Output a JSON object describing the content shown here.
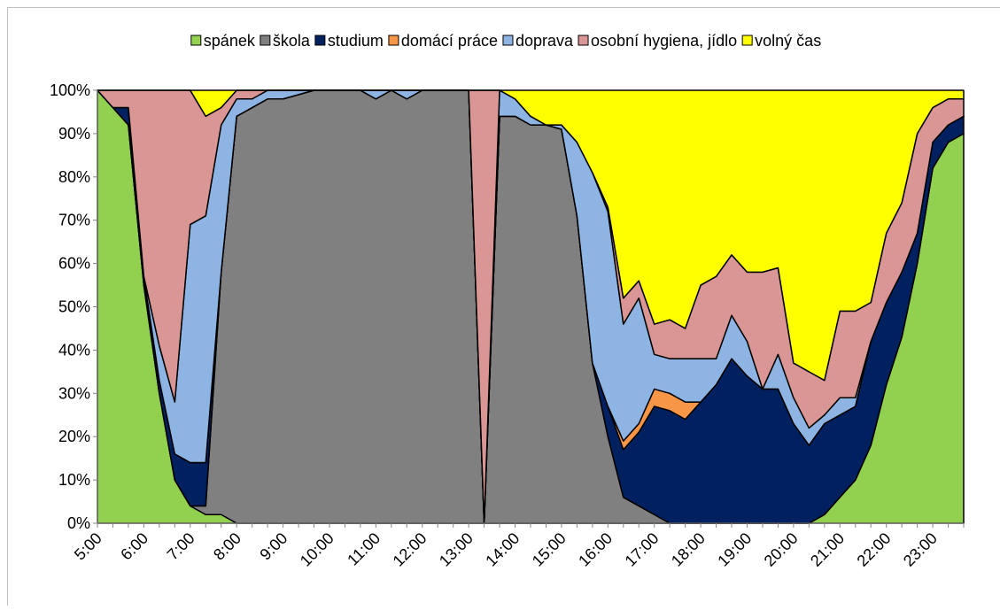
{
  "chart_data": {
    "type": "stacked_area_100",
    "categories": [
      "5:00",
      null,
      null,
      "6:00",
      null,
      null,
      "7:00",
      null,
      null,
      "8:00",
      null,
      null,
      "9:00",
      null,
      null,
      "10:00",
      null,
      null,
      "11:00",
      null,
      null,
      "12:00",
      null,
      null,
      "13:00",
      null,
      null,
      "14:00",
      null,
      null,
      "15:00",
      null,
      null,
      "16:00",
      null,
      null,
      "17:00",
      null,
      null,
      "18:00",
      null,
      null,
      "19:00",
      null,
      null,
      "20:00",
      null,
      null,
      "21:00",
      null,
      null,
      "22:00",
      null,
      null,
      "23:00",
      null,
      null
    ],
    "series": [
      {
        "name": "spánek",
        "color": "#92d050",
        "values": [
          100,
          96,
          92,
          55,
          30,
          10,
          4,
          2,
          2,
          0,
          0,
          0,
          0,
          0,
          0,
          0,
          0,
          0,
          0,
          0,
          0,
          0,
          0,
          0,
          0,
          0,
          0,
          0,
          0,
          0,
          0,
          0,
          0,
          0,
          0,
          0,
          0,
          0,
          0,
          0,
          0,
          0,
          0,
          0,
          0,
          0,
          0,
          2,
          6,
          10,
          18,
          32,
          43,
          60,
          82,
          88,
          90
        ]
      },
      {
        "name": "škola",
        "color": "#808080",
        "values": [
          0,
          0,
          0,
          0,
          0,
          0,
          0,
          2,
          56,
          94,
          96,
          98,
          98,
          99,
          100,
          100,
          100,
          100,
          98,
          100,
          98,
          100,
          100,
          100,
          100,
          0,
          94,
          94,
          92,
          92,
          91,
          71,
          37,
          20,
          6,
          4,
          2,
          0,
          0,
          0,
          0,
          0,
          0,
          0,
          0,
          0,
          0,
          0,
          0,
          0,
          0,
          0,
          0,
          0,
          0,
          0,
          0
        ]
      },
      {
        "name": "studium",
        "color": "#002060",
        "values": [
          0,
          0,
          4,
          2,
          3,
          6,
          10,
          10,
          0,
          0,
          0,
          0,
          0,
          0,
          0,
          0,
          0,
          0,
          0,
          0,
          0,
          0,
          0,
          0,
          0,
          0,
          0,
          0,
          0,
          0,
          0,
          0,
          0,
          7,
          11,
          17,
          25,
          26,
          24,
          28,
          32,
          38,
          34,
          31,
          31,
          23,
          18,
          21,
          19,
          17,
          24,
          19,
          15,
          7,
          6,
          4,
          4
        ]
      },
      {
        "name": "domácí práce",
        "color": "#f79646",
        "values": [
          0,
          0,
          0,
          0,
          0,
          0,
          0,
          0,
          0,
          0,
          0,
          0,
          0,
          0,
          0,
          0,
          0,
          0,
          0,
          0,
          0,
          0,
          0,
          0,
          0,
          0,
          0,
          0,
          0,
          0,
          0,
          0,
          0,
          0,
          2,
          2,
          4,
          4,
          4,
          0,
          0,
          0,
          0,
          0,
          0,
          0,
          0,
          0,
          0,
          0,
          0,
          0,
          0,
          0,
          0,
          0,
          0
        ]
      },
      {
        "name": "doprava",
        "color": "#8eb4e3",
        "values": [
          0,
          0,
          0,
          0,
          8,
          12,
          55,
          57,
          34,
          4,
          2,
          2,
          2,
          1,
          0,
          0,
          0,
          0,
          2,
          0,
          2,
          0,
          0,
          0,
          0,
          0,
          6,
          4,
          2,
          0,
          1,
          17,
          44,
          45,
          27,
          29,
          8,
          8,
          10,
          10,
          6,
          10,
          8,
          0,
          8,
          6,
          4,
          2,
          4,
          2,
          0,
          0,
          0,
          0,
          0,
          0,
          0
        ]
      },
      {
        "name": "osobní hygiena, jídlo",
        "color": "#d99694",
        "values": [
          0,
          4,
          4,
          43,
          59,
          72,
          31,
          23,
          4,
          2,
          2,
          0,
          0,
          0,
          0,
          0,
          0,
          0,
          0,
          0,
          0,
          0,
          0,
          0,
          0,
          100,
          0,
          0,
          0,
          0,
          0,
          0,
          0,
          1,
          6,
          4,
          7,
          9,
          7,
          17,
          19,
          14,
          16,
          27,
          20,
          8,
          13,
          8,
          20,
          20,
          9,
          16,
          16,
          23,
          8,
          6,
          4
        ]
      },
      {
        "name": "volný čas",
        "color": "#ffff00",
        "values": [
          0,
          0,
          0,
          0,
          0,
          0,
          0,
          6,
          4,
          0,
          0,
          0,
          0,
          0,
          0,
          0,
          0,
          0,
          0,
          0,
          0,
          0,
          0,
          0,
          0,
          0,
          0,
          2,
          6,
          8,
          8,
          12,
          19,
          27,
          48,
          44,
          54,
          53,
          55,
          45,
          43,
          38,
          42,
          42,
          41,
          63,
          65,
          67,
          51,
          51,
          49,
          33,
          26,
          10,
          4,
          2,
          2
        ]
      }
    ],
    "ylim": [
      0,
      100
    ],
    "yticks": [
      {
        "value": 0,
        "label": "0%"
      },
      {
        "value": 10,
        "label": "10%"
      },
      {
        "value": 20,
        "label": "20%"
      },
      {
        "value": 30,
        "label": "30%"
      },
      {
        "value": 40,
        "label": "40%"
      },
      {
        "value": 50,
        "label": "50%"
      },
      {
        "value": 60,
        "label": "60%"
      },
      {
        "value": 70,
        "label": "70%"
      },
      {
        "value": 80,
        "label": "80%"
      },
      {
        "value": 90,
        "label": "90%"
      },
      {
        "value": 100,
        "label": "100%"
      }
    ],
    "legend": "top",
    "grid": false
  }
}
